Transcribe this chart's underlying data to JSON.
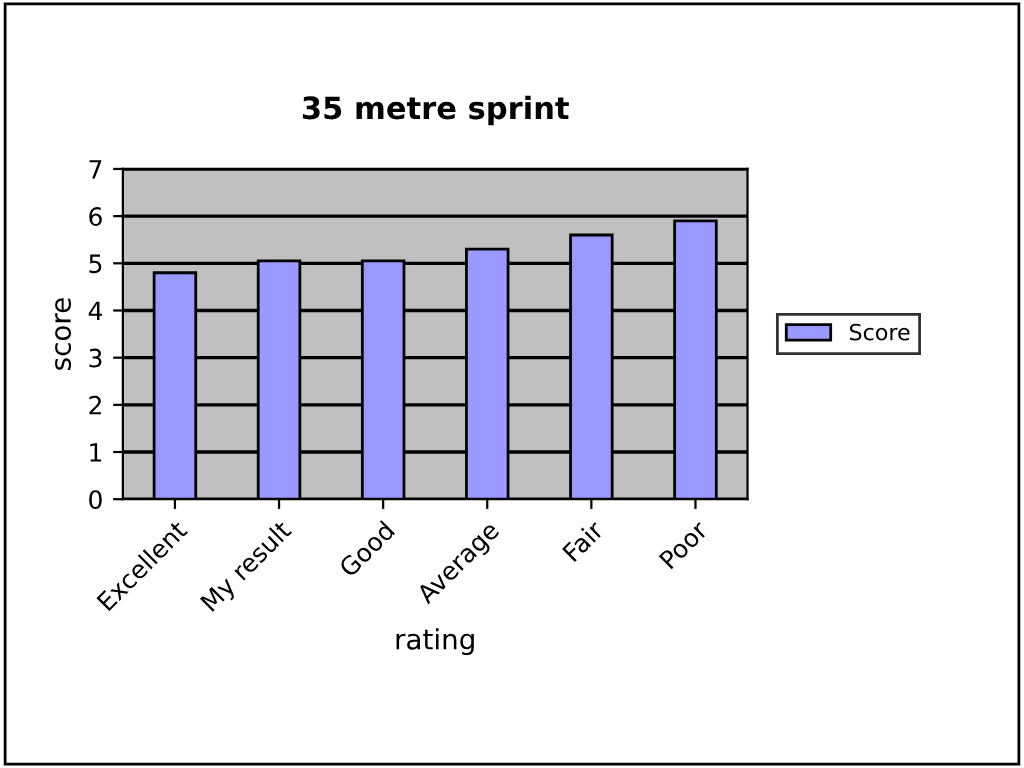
{
  "chart_data": {
    "type": "bar",
    "title": "35 metre sprint",
    "xlabel": "rating",
    "ylabel": "score",
    "categories": [
      "Excellent",
      "My result",
      "Good",
      "Average",
      "Fair",
      "Poor"
    ],
    "series": [
      {
        "name": "Score",
        "color": "#9999ff",
        "values": [
          4.8,
          5.05,
          5.05,
          5.3,
          5.6,
          5.9
        ]
      }
    ],
    "ylim": [
      0,
      7
    ],
    "yticks": [
      0,
      1,
      2,
      3,
      4,
      5,
      6,
      7
    ],
    "grid": "y",
    "legend": "right"
  }
}
